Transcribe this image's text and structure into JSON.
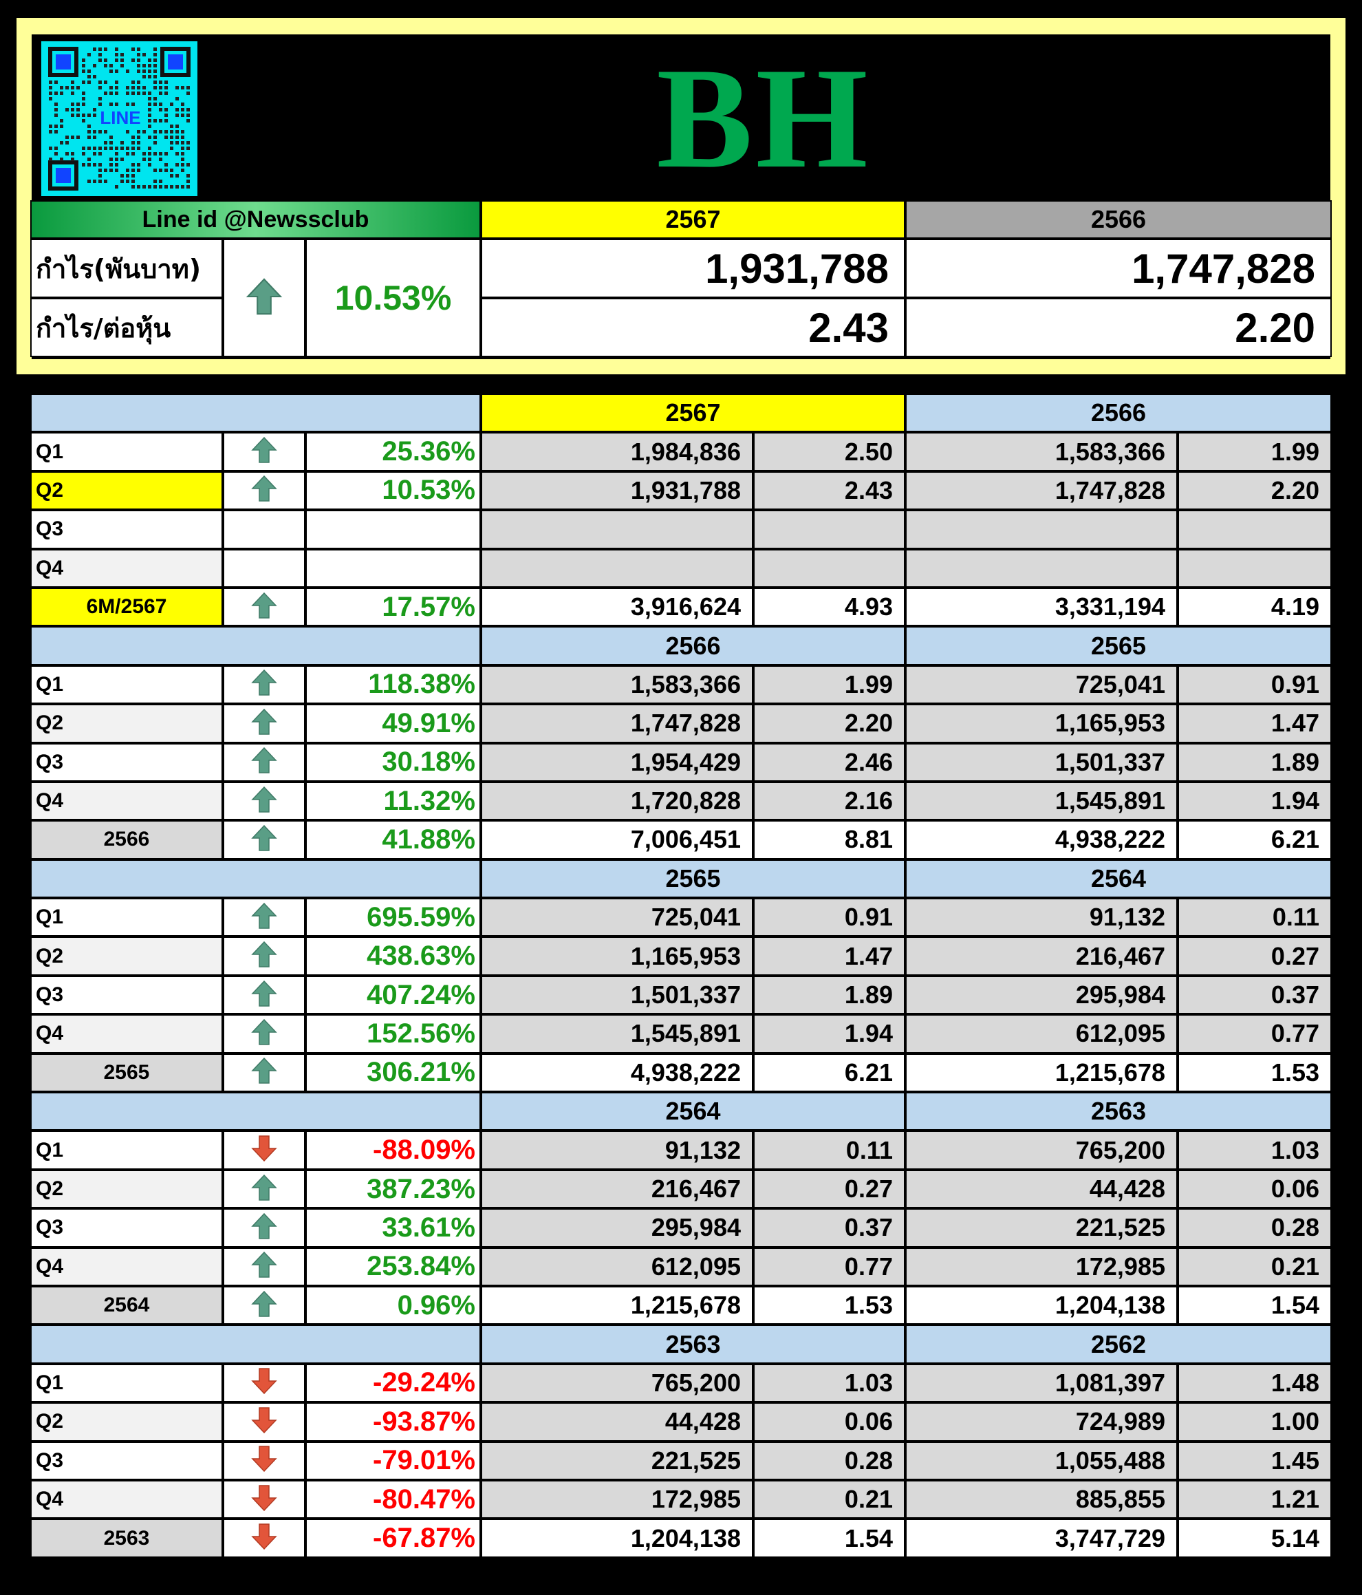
{
  "header": {
    "qr_label": "LINE",
    "brand": "BH",
    "line_id": "Line id @Newssclub",
    "year_current": "2567",
    "year_previous": "2566",
    "profit_label": "กำไร(พันบาท)",
    "eps_label": "กำไร/ต่อหุ้น",
    "change": "10.53%",
    "change_direction": "up",
    "profit_current": "1,931,788",
    "profit_previous": "1,747,828",
    "eps_current": "2.43",
    "eps_previous": "2.20"
  },
  "colors": {
    "up_arrow": "#5a9e86",
    "down_arrow": "#e2553a",
    "positive_text": "#1a9a1a",
    "negative_text": "#ff0000",
    "brand": "#00a84f"
  },
  "sections": [
    {
      "year1": "2567",
      "year2": "2566",
      "highlight_year": true,
      "rows": [
        {
          "label": "Q1",
          "dir": "up",
          "pct": "25.36%",
          "v1": "1,984,836",
          "e1": "2.50",
          "v2": "1,583,366",
          "e2": "1.99"
        },
        {
          "label": "Q2",
          "dir": "up",
          "pct": "10.53%",
          "v1": "1,931,788",
          "e1": "2.43",
          "v2": "1,747,828",
          "e2": "2.20",
          "highlight": true
        },
        {
          "label": "Q3",
          "dir": "",
          "pct": "",
          "v1": "",
          "e1": "",
          "v2": "",
          "e2": ""
        },
        {
          "label": "Q4",
          "dir": "",
          "pct": "",
          "v1": "",
          "e1": "",
          "v2": "",
          "e2": ""
        },
        {
          "label": "6M/2567",
          "dir": "up",
          "pct": "17.57%",
          "v1": "3,916,624",
          "e1": "4.93",
          "v2": "3,331,194",
          "e2": "4.19",
          "total": true,
          "highlight": true
        }
      ]
    },
    {
      "year1": "2566",
      "year2": "2565",
      "rows": [
        {
          "label": "Q1",
          "dir": "up",
          "pct": "118.38%",
          "v1": "1,583,366",
          "e1": "1.99",
          "v2": "725,041",
          "e2": "0.91"
        },
        {
          "label": "Q2",
          "dir": "up",
          "pct": "49.91%",
          "v1": "1,747,828",
          "e1": "2.20",
          "v2": "1,165,953",
          "e2": "1.47"
        },
        {
          "label": "Q3",
          "dir": "up",
          "pct": "30.18%",
          "v1": "1,954,429",
          "e1": "2.46",
          "v2": "1,501,337",
          "e2": "1.89"
        },
        {
          "label": "Q4",
          "dir": "up",
          "pct": "11.32%",
          "v1": "1,720,828",
          "e1": "2.16",
          "v2": "1,545,891",
          "e2": "1.94"
        },
        {
          "label": "2566",
          "dir": "up",
          "pct": "41.88%",
          "v1": "7,006,451",
          "e1": "8.81",
          "v2": "4,938,222",
          "e2": "6.21",
          "total": true
        }
      ]
    },
    {
      "year1": "2565",
      "year2": "2564",
      "rows": [
        {
          "label": "Q1",
          "dir": "up",
          "pct": "695.59%",
          "v1": "725,041",
          "e1": "0.91",
          "v2": "91,132",
          "e2": "0.11"
        },
        {
          "label": "Q2",
          "dir": "up",
          "pct": "438.63%",
          "v1": "1,165,953",
          "e1": "1.47",
          "v2": "216,467",
          "e2": "0.27"
        },
        {
          "label": "Q3",
          "dir": "up",
          "pct": "407.24%",
          "v1": "1,501,337",
          "e1": "1.89",
          "v2": "295,984",
          "e2": "0.37"
        },
        {
          "label": "Q4",
          "dir": "up",
          "pct": "152.56%",
          "v1": "1,545,891",
          "e1": "1.94",
          "v2": "612,095",
          "e2": "0.77"
        },
        {
          "label": "2565",
          "dir": "up",
          "pct": "306.21%",
          "v1": "4,938,222",
          "e1": "6.21",
          "v2": "1,215,678",
          "e2": "1.53",
          "total": true
        }
      ]
    },
    {
      "year1": "2564",
      "year2": "2563",
      "rows": [
        {
          "label": "Q1",
          "dir": "down",
          "pct": "-88.09%",
          "v1": "91,132",
          "e1": "0.11",
          "v2": "765,200",
          "e2": "1.03"
        },
        {
          "label": "Q2",
          "dir": "up",
          "pct": "387.23%",
          "v1": "216,467",
          "e1": "0.27",
          "v2": "44,428",
          "e2": "0.06"
        },
        {
          "label": "Q3",
          "dir": "up",
          "pct": "33.61%",
          "v1": "295,984",
          "e1": "0.37",
          "v2": "221,525",
          "e2": "0.28"
        },
        {
          "label": "Q4",
          "dir": "up",
          "pct": "253.84%",
          "v1": "612,095",
          "e1": "0.77",
          "v2": "172,985",
          "e2": "0.21"
        },
        {
          "label": "2564",
          "dir": "up",
          "pct": "0.96%",
          "v1": "1,215,678",
          "e1": "1.53",
          "v2": "1,204,138",
          "e2": "1.54",
          "total": true
        }
      ]
    },
    {
      "year1": "2563",
      "year2": "2562",
      "rows": [
        {
          "label": "Q1",
          "dir": "down",
          "pct": "-29.24%",
          "v1": "765,200",
          "e1": "1.03",
          "v2": "1,081,397",
          "e2": "1.48"
        },
        {
          "label": "Q2",
          "dir": "down",
          "pct": "-93.87%",
          "v1": "44,428",
          "e1": "0.06",
          "v2": "724,989",
          "e2": "1.00"
        },
        {
          "label": "Q3",
          "dir": "down",
          "pct": "-79.01%",
          "v1": "221,525",
          "e1": "0.28",
          "v2": "1,055,488",
          "e2": "1.45"
        },
        {
          "label": "Q4",
          "dir": "down",
          "pct": "-80.47%",
          "v1": "172,985",
          "e1": "0.21",
          "v2": "885,855",
          "e2": "1.21"
        },
        {
          "label": "2563",
          "dir": "down",
          "pct": "-67.87%",
          "v1": "1,204,138",
          "e1": "1.54",
          "v2": "3,747,729",
          "e2": "5.14",
          "total": true
        }
      ]
    }
  ]
}
